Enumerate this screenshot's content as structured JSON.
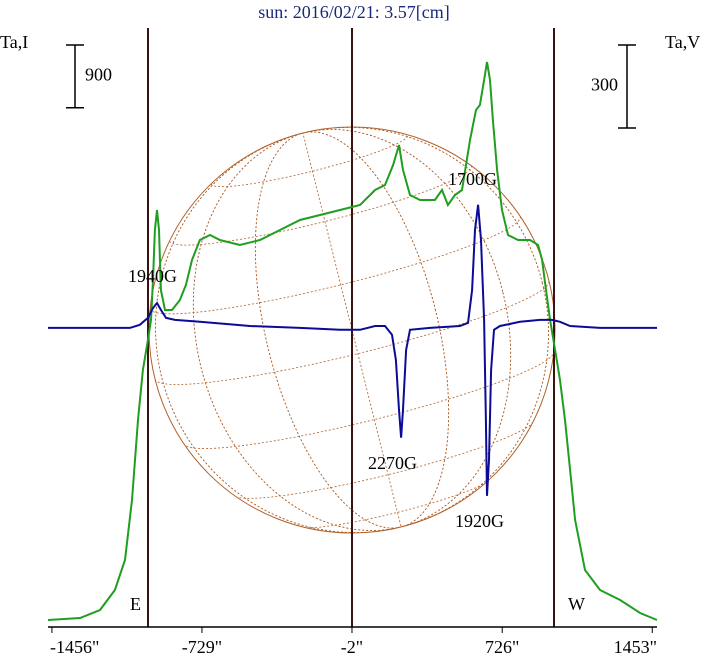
{
  "chart_data": {
    "type": "line",
    "title": "sun: 2016/02/21: 3.57[cm]",
    "xlim": [
      -1475,
      1476
    ],
    "xticks": [
      {
        "value": -1456,
        "label": "-1456\""
      },
      {
        "value": -729,
        "label": "-729\""
      },
      {
        "value": -2,
        "label": "-2\""
      },
      {
        "value": 726,
        "label": "726\""
      },
      {
        "value": 1453,
        "label": "1453\""
      }
    ],
    "ylim": [
      0,
      9000
    ],
    "y2lim": [
      -1081,
      1185
    ],
    "scale_bars": [
      {
        "value": 900,
        "axis": "y"
      },
      {
        "value": 300,
        "axis": "y2"
      }
    ],
    "annotations": [
      "1940G",
      "1700G",
      "2270G",
      "1920G",
      "E",
      "W"
    ],
    "series": [
      {
        "name": "Ta,I",
        "color": "#1f9e1f",
        "axis": "y",
        "x": [
          -1475,
          -1320,
          -1223,
          -1151,
          -1102,
          -1068,
          -1039,
          -1015,
          -991,
          -976,
          -966,
          -957,
          -947,
          -937,
          -928,
          -908,
          -874,
          -836,
          -807,
          -777,
          -739,
          -690,
          -642,
          -545,
          -448,
          -351,
          -254,
          -157,
          -60,
          37,
          110,
          158,
          197,
          226,
          245,
          279,
          328,
          400,
          434,
          463,
          497,
          531,
          570,
          599,
          618,
          638,
          652,
          667,
          681,
          701,
          725,
          754,
          803,
          861,
          900,
          919,
          938,
          958,
          982,
          1006,
          1030,
          1055,
          1079,
          1127,
          1200,
          1297,
          1394,
          1476
        ],
        "values": [
          100,
          129,
          244,
          531,
          962,
          1823,
          2971,
          3689,
          4120,
          4407,
          4981,
          5699,
          5986,
          5699,
          4837,
          4550,
          4550,
          4694,
          4909,
          5268,
          5555,
          5627,
          5555,
          5483,
          5555,
          5699,
          5842,
          5914,
          5986,
          6057,
          6273,
          6344,
          6631,
          6919,
          6560,
          6201,
          6129,
          6129,
          6273,
          6057,
          6201,
          6273,
          6990,
          7421,
          7493,
          7852,
          8110,
          7852,
          7277,
          6560,
          5986,
          5627,
          5555,
          5555,
          5483,
          5268,
          4837,
          4407,
          3976,
          3545,
          2971,
          2254,
          1536,
          818,
          531,
          388,
          201,
          100
        ]
      },
      {
        "name": "Ta,V",
        "color": "#0b0b96",
        "axis": "y2",
        "x": [
          -1475,
          -1078,
          -1030,
          -991,
          -966,
          -947,
          -928,
          -903,
          -860,
          -739,
          -496,
          -254,
          -60,
          37,
          110,
          158,
          192,
          211,
          226,
          236,
          245,
          260,
          279,
          376,
          521,
          560,
          580,
          594,
          609,
          623,
          638,
          647,
          652,
          662,
          672,
          686,
          715,
          812,
          909,
          967,
          1006,
          1055,
          1200,
          1476
        ],
        "values": [
          0,
          0,
          11,
          36,
          72,
          90,
          65,
          36,
          29,
          22,
          7,
          0,
          -7,
          -7,
          7,
          7,
          -25,
          -116,
          -296,
          -397,
          -296,
          -80,
          -7,
          0,
          7,
          18,
          137,
          354,
          445,
          318,
          29,
          -332,
          -607,
          -477,
          -152,
          -7,
          7,
          22,
          29,
          29,
          22,
          7,
          0,
          0
        ]
      }
    ]
  }
}
